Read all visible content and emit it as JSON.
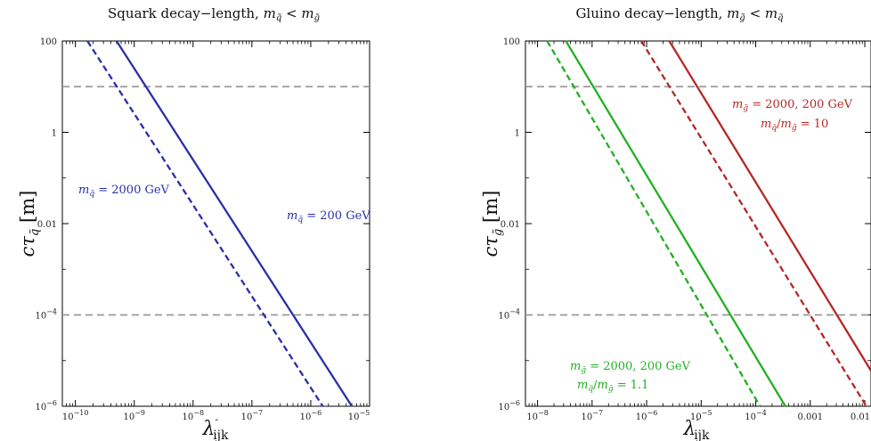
{
  "chart_data": [
    {
      "type": "line",
      "title": "Squark decay−length, m̃q < m̃g",
      "xlabel": "λ″ijk",
      "ylabel": "cτq̃ [m]",
      "xscale": "log",
      "yscale": "log",
      "xlim": [
        6e-11,
        1e-05
      ],
      "ylim": [
        1e-06,
        100
      ],
      "xticks": [
        "10⁻¹⁰",
        "10⁻⁹",
        "10⁻⁸",
        "10⁻⁷",
        "10⁻⁶",
        "10⁻⁵"
      ],
      "xtick_values": [
        1e-10,
        1e-09,
        1e-08,
        1e-07,
        1e-06,
        1e-05
      ],
      "yticks": [
        "100",
        "1",
        "0.01",
        "10⁻⁴",
        "10⁻⁶"
      ],
      "ytick_values": [
        100,
        1,
        0.01,
        0.0001,
        1e-06
      ],
      "hlines": [
        10,
        0.0001
      ],
      "series": [
        {
          "label": "m̃q = 2000 GeV",
          "style": "dashed",
          "color": "#2b2fa8",
          "x": [
            1.6e-10,
            1.6e-06
          ],
          "y": [
            100,
            1e-06
          ]
        },
        {
          "label": "m̃q = 200 GeV",
          "style": "solid",
          "color": "#2b2fa8",
          "x": [
            5e-10,
            5e-06
          ],
          "y": [
            100,
            1e-06
          ]
        }
      ],
      "annotations": [
        {
          "text": "m̃q = 2000 GeV",
          "color": "#2b2fa8"
        },
        {
          "text": "m̃q = 200 GeV",
          "color": "#2b2fa8"
        }
      ]
    },
    {
      "type": "line",
      "title": "Gluino decay−length, m̃g < m̃q",
      "xlabel": "λ″ijk",
      "ylabel": "cτg̃ [m]",
      "xscale": "log",
      "yscale": "log",
      "xlim": [
        6e-09,
        0.013
      ],
      "ylim": [
        1e-06,
        100
      ],
      "xticks": [
        "10⁻⁸",
        "10⁻⁷",
        "10⁻⁶",
        "10⁻⁵",
        "10⁻⁴",
        "0.001",
        "0.01"
      ],
      "xtick_values": [
        1e-08,
        1e-07,
        1e-06,
        1e-05,
        0.0001,
        0.001,
        0.01
      ],
      "yticks": [
        "100",
        "1",
        "0.01",
        "10⁻⁴",
        "10⁻⁶"
      ],
      "ytick_values": [
        100,
        1,
        0.01,
        0.0001,
        1e-06
      ],
      "hlines": [
        10,
        0.0001
      ],
      "series": [
        {
          "label": "m̃g = 2000 GeV, m̃q/m̃g = 1.1",
          "style": "dashed",
          "color": "#22b022",
          "x": [
            1.5e-08,
            0.00012
          ],
          "y": [
            100,
            1e-06
          ]
        },
        {
          "label": "m̃g = 200 GeV, m̃q/m̃g = 1.1",
          "style": "solid",
          "color": "#22b022",
          "x": [
            3.3e-08,
            0.00035
          ],
          "y": [
            100,
            1e-06
          ]
        },
        {
          "label": "m̃g = 2000 GeV, m̃q/m̃g = 10",
          "style": "dashed",
          "color": "#b42828",
          "x": [
            8e-07,
            0.0107
          ],
          "y": [
            100,
            1e-06
          ]
        },
        {
          "label": "m̃g = 200 GeV, m̃q/m̃g = 10",
          "style": "solid",
          "color": "#b42828",
          "x": [
            2.6e-06,
            0.013
          ],
          "y": [
            100,
            6e-06
          ]
        }
      ],
      "annotations": [
        {
          "text": "m̃g = 2000, 200 GeV",
          "color": "#b42828"
        },
        {
          "text": "m̃q/m̃g = 10",
          "color": "#b42828"
        },
        {
          "text": "m̃g = 2000, 200 GeV",
          "color": "#22b022"
        },
        {
          "text": "m̃q/m̃g = 1.1",
          "color": "#22b022"
        }
      ]
    }
  ]
}
